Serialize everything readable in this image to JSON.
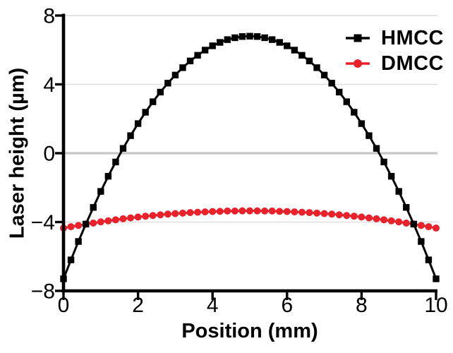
{
  "chart_data": {
    "type": "line",
    "title": "",
    "xlabel": "Position (mm)",
    "ylabel": "Laser height (µm)",
    "xlim": [
      0,
      10
    ],
    "ylim": [
      -8,
      8
    ],
    "x_ticks": [
      0,
      2,
      4,
      6,
      8,
      10
    ],
    "y_ticks": [
      8,
      4,
      0,
      -4,
      -8
    ],
    "grid": "horizontal gridlines at y = 8, 4, 0, -4; emphasized thicker line at y = 0; no vertical gridlines",
    "legend_position": "top-right",
    "x": [
      0,
      0.2,
      0.4,
      0.6,
      0.8,
      1,
      1.2,
      1.4,
      1.6,
      1.8,
      2,
      2.2,
      2.4,
      2.6,
      2.8,
      3,
      3.2,
      3.4,
      3.6,
      3.8,
      4,
      4.2,
      4.4,
      4.6,
      4.8,
      5,
      5.2,
      5.4,
      5.6,
      5.8,
      6,
      6.2,
      6.4,
      6.6,
      6.8,
      7,
      7.2,
      7.4,
      7.6,
      7.8,
      8,
      8.2,
      8.4,
      8.6,
      8.8,
      9,
      9.2,
      9.4,
      9.6,
      9.8,
      10
    ],
    "series": [
      {
        "name": "HMCC",
        "color": "#000000",
        "marker": "square",
        "values": [
          -7.3,
          -6.2,
          -5.13,
          -4.12,
          -3.15,
          -2.22,
          -1.34,
          -0.51,
          0.28,
          1.02,
          1.72,
          2.38,
          2.99,
          3.55,
          4.07,
          4.54,
          4.97,
          5.36,
          5.69,
          5.99,
          6.24,
          6.44,
          6.6,
          6.71,
          6.78,
          6.8,
          6.78,
          6.71,
          6.6,
          6.44,
          6.24,
          5.99,
          5.69,
          5.36,
          4.97,
          4.54,
          4.07,
          3.55,
          2.99,
          2.38,
          1.72,
          1.02,
          0.28,
          -0.51,
          -1.34,
          -2.22,
          -3.15,
          -4.12,
          -5.13,
          -6.2,
          -7.3
        ]
      },
      {
        "name": "DMCC",
        "color": "#e8212a",
        "marker": "circle",
        "values": [
          -4.35,
          -4.27,
          -4.2,
          -4.12,
          -4.06,
          -3.99,
          -3.93,
          -3.87,
          -3.81,
          -3.76,
          -3.71,
          -3.66,
          -3.62,
          -3.58,
          -3.54,
          -3.51,
          -3.48,
          -3.45,
          -3.43,
          -3.41,
          -3.39,
          -3.38,
          -3.36,
          -3.36,
          -3.35,
          -3.35,
          -3.35,
          -3.36,
          -3.36,
          -3.38,
          -3.39,
          -3.41,
          -3.43,
          -3.45,
          -3.48,
          -3.51,
          -3.54,
          -3.58,
          -3.62,
          -3.66,
          -3.71,
          -3.76,
          -3.81,
          -3.87,
          -3.93,
          -3.99,
          -4.06,
          -4.12,
          -4.2,
          -4.27,
          -4.35
        ]
      }
    ]
  },
  "colors": {
    "axis": "#000000",
    "gridline": "#dcdcdc",
    "zero_line": "#c7c7c7",
    "background": "#ffffff"
  }
}
